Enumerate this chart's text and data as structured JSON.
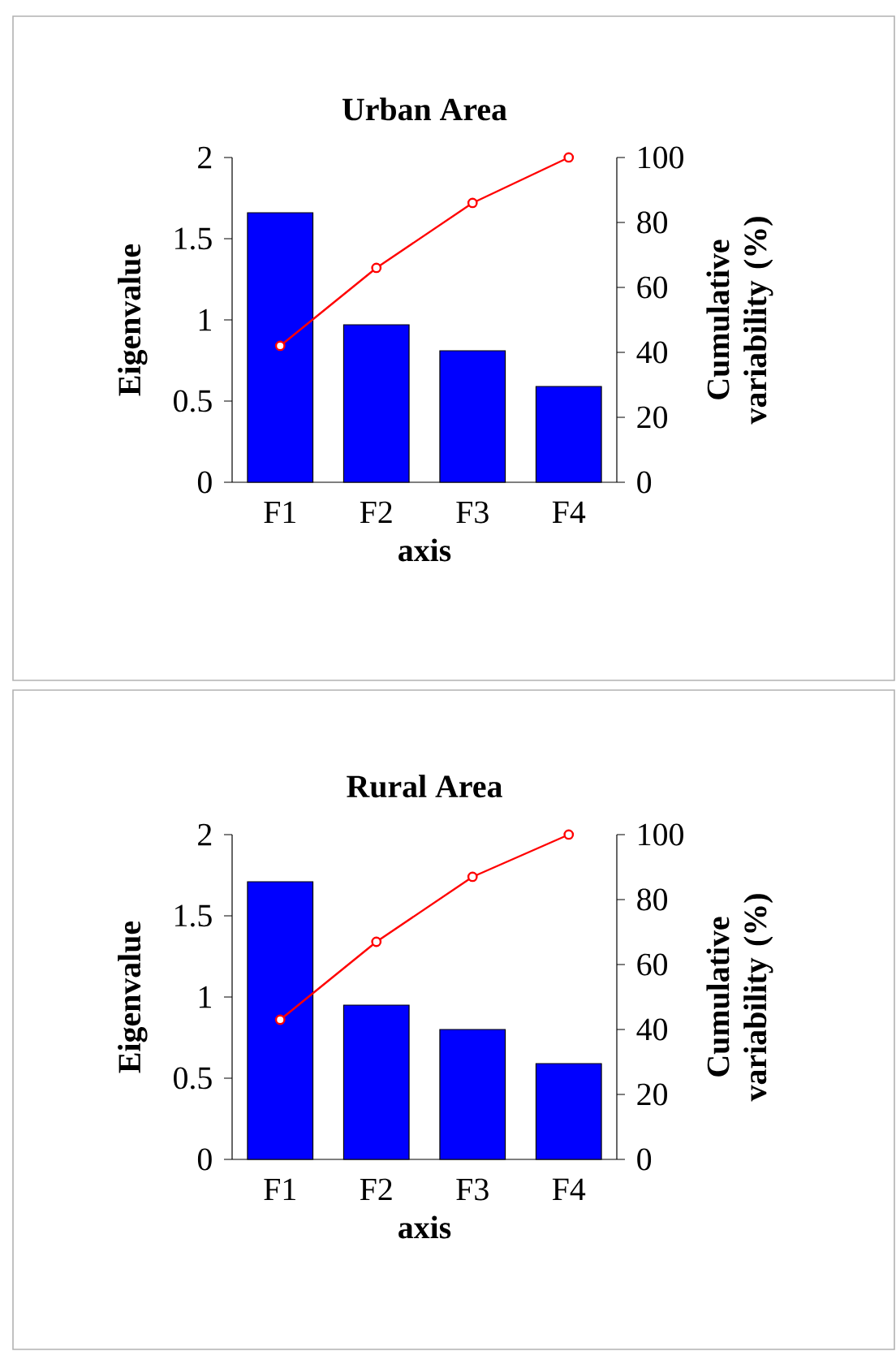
{
  "chart_data": [
    {
      "type": "bar",
      "title": "Urban Area",
      "xlabel": "axis",
      "ylabel": "Eigenvalue",
      "y2label": "Cumulative variability (%)",
      "categories": [
        "F1",
        "F2",
        "F3",
        "F4"
      ],
      "series": [
        {
          "color": "#0000ff",
          "values": [
            1.66,
            0.97,
            0.81,
            0.59
          ]
        },
        {
          "type": "line",
          "axis": "y2",
          "color": "#ff0000",
          "marker": "circle",
          "values": [
            42,
            66,
            86,
            100
          ]
        }
      ],
      "ylim": [
        0,
        2
      ],
      "yticks": [
        0,
        0.5,
        1,
        1.5,
        2
      ],
      "y2lim": [
        0,
        100
      ],
      "y2ticks": [
        0,
        20,
        40,
        60,
        80,
        100
      ]
    },
    {
      "type": "bar",
      "title": "Rural Area",
      "xlabel": "axis",
      "ylabel": "Eigenvalue",
      "y2label": "Cumulative variability (%)",
      "categories": [
        "F1",
        "F2",
        "F3",
        "F4"
      ],
      "series": [
        {
          "color": "#0000ff",
          "values": [
            1.71,
            0.95,
            0.8,
            0.59
          ]
        },
        {
          "type": "line",
          "axis": "y2",
          "color": "#ff0000",
          "marker": "circle",
          "values": [
            43,
            67,
            87,
            100
          ]
        }
      ],
      "ylim": [
        0,
        2
      ],
      "yticks": [
        0,
        0.5,
        1,
        1.5,
        2
      ],
      "y2lim": [
        0,
        100
      ],
      "y2ticks": [
        0,
        20,
        40,
        60,
        80,
        100
      ]
    }
  ]
}
